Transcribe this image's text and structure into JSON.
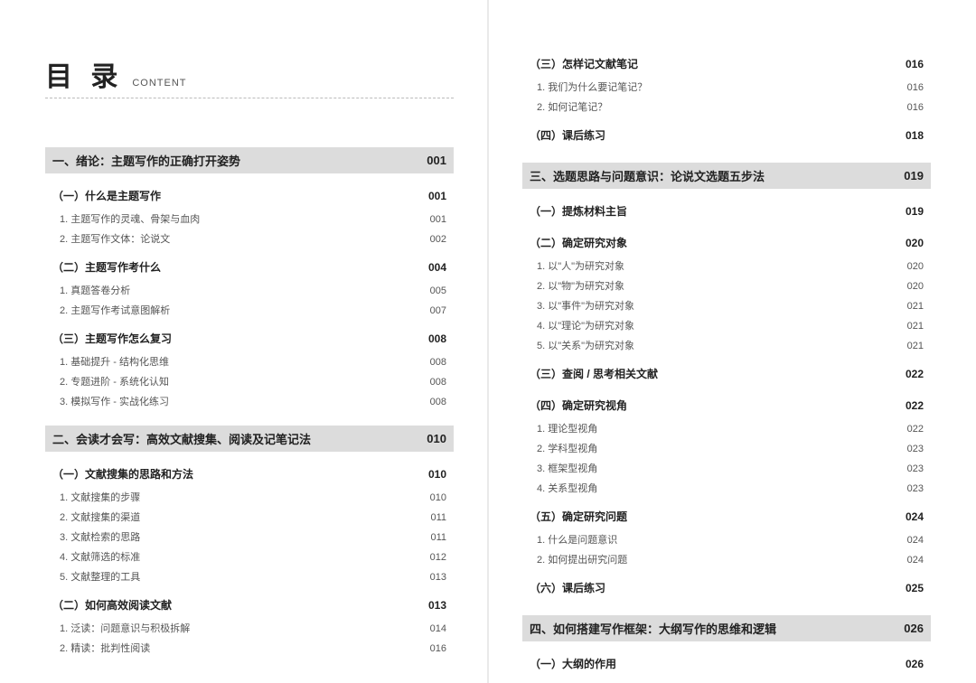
{
  "header": {
    "title_cn": "目 录",
    "title_en": "CONTENT"
  },
  "left": [
    {
      "type": "chapter",
      "title": "一、绪论：主题写作的正确打开姿势",
      "page": "001"
    },
    {
      "type": "section",
      "title": "（一）什么是主题写作",
      "page": "001"
    },
    {
      "type": "sub",
      "title": "1. 主题写作的灵魂、骨架与血肉",
      "page": "001"
    },
    {
      "type": "sub",
      "title": "2. 主题写作文体：论说文",
      "page": "002"
    },
    {
      "type": "gap"
    },
    {
      "type": "section",
      "title": "（二）主题写作考什么",
      "page": "004"
    },
    {
      "type": "sub",
      "title": "1. 真题答卷分析",
      "page": "005"
    },
    {
      "type": "sub",
      "title": "2. 主题写作考试意图解析",
      "page": "007"
    },
    {
      "type": "gap"
    },
    {
      "type": "section",
      "title": "（三）主题写作怎么复习",
      "page": "008"
    },
    {
      "type": "sub",
      "title": "1. 基础提升 - 结构化思维",
      "page": "008"
    },
    {
      "type": "sub",
      "title": "2. 专题进阶 - 系统化认知",
      "page": "008"
    },
    {
      "type": "sub",
      "title": "3. 模拟写作 - 实战化练习",
      "page": "008"
    },
    {
      "type": "chgap"
    },
    {
      "type": "chapter",
      "title": "二、会读才会写：高效文献搜集、阅读及记笔记法",
      "page": "010"
    },
    {
      "type": "section",
      "title": "（一）文献搜集的思路和方法",
      "page": "010"
    },
    {
      "type": "sub",
      "title": "1. 文献搜集的步骤",
      "page": "010"
    },
    {
      "type": "sub",
      "title": "2. 文献搜集的渠道",
      "page": "011"
    },
    {
      "type": "sub",
      "title": "3. 文献检索的思路",
      "page": "011"
    },
    {
      "type": "sub",
      "title": "4. 文献筛选的标准",
      "page": "012"
    },
    {
      "type": "sub",
      "title": "5. 文献整理的工具",
      "page": "013"
    },
    {
      "type": "gap"
    },
    {
      "type": "section",
      "title": "（二）如何高效阅读文献",
      "page": "013"
    },
    {
      "type": "sub",
      "title": "1. 泛读：问题意识与积极拆解",
      "page": "014"
    },
    {
      "type": "sub",
      "title": "2. 精读：批判性阅读",
      "page": "016"
    }
  ],
  "right": [
    {
      "type": "section",
      "title": "（三）怎样记文献笔记",
      "page": "016"
    },
    {
      "type": "sub",
      "title": "1. 我们为什么要记笔记？",
      "page": "016"
    },
    {
      "type": "sub",
      "title": "2. 如何记笔记？",
      "page": "016"
    },
    {
      "type": "gap"
    },
    {
      "type": "section",
      "title": "（四）课后练习",
      "page": "018"
    },
    {
      "type": "chgap"
    },
    {
      "type": "chapter",
      "title": "三、选题思路与问题意识：论说文选题五步法",
      "page": "019"
    },
    {
      "type": "section",
      "title": "（一）提炼材料主旨",
      "page": "019"
    },
    {
      "type": "gap"
    },
    {
      "type": "section",
      "title": "（二）确定研究对象",
      "page": "020"
    },
    {
      "type": "sub",
      "title": "1. 以\"人\"为研究对象",
      "page": "020"
    },
    {
      "type": "sub",
      "title": "2. 以\"物\"为研究对象",
      "page": "020"
    },
    {
      "type": "sub",
      "title": "3. 以\"事件\"为研究对象",
      "page": "021"
    },
    {
      "type": "sub",
      "title": "4. 以\"理论\"为研究对象",
      "page": "021"
    },
    {
      "type": "sub",
      "title": "5. 以\"关系\"为研究对象",
      "page": "021"
    },
    {
      "type": "gap"
    },
    {
      "type": "section",
      "title": "（三）查阅 / 思考相关文献",
      "page": "022"
    },
    {
      "type": "gap"
    },
    {
      "type": "section",
      "title": "（四）确定研究视角",
      "page": "022"
    },
    {
      "type": "sub",
      "title": "1. 理论型视角",
      "page": "022"
    },
    {
      "type": "sub",
      "title": "2. 学科型视角",
      "page": "023"
    },
    {
      "type": "sub",
      "title": "3. 框架型视角",
      "page": "023"
    },
    {
      "type": "sub",
      "title": "4. 关系型视角",
      "page": "023"
    },
    {
      "type": "gap"
    },
    {
      "type": "section",
      "title": "（五）确定研究问题",
      "page": "024"
    },
    {
      "type": "sub",
      "title": "1. 什么是问题意识",
      "page": "024"
    },
    {
      "type": "sub",
      "title": "2. 如何提出研究问题",
      "page": "024"
    },
    {
      "type": "gap"
    },
    {
      "type": "section",
      "title": "（六）课后练习",
      "page": "025"
    },
    {
      "type": "chgap"
    },
    {
      "type": "chapter",
      "title": "四、如何搭建写作框架：大纲写作的思维和逻辑",
      "page": "026"
    },
    {
      "type": "section",
      "title": "（一）大纲的作用",
      "page": "026"
    }
  ]
}
